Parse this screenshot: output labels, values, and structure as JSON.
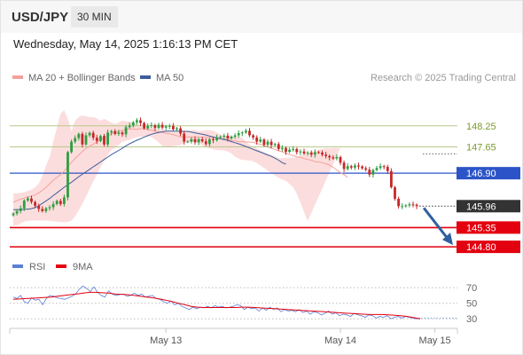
{
  "header": {
    "pair": "USD/JPY",
    "timeframe": "30 MIN",
    "datetime": "Wednesday, May 14, 2025 1:16:13 PM CET"
  },
  "colors": {
    "candle_up": "#2e9e42",
    "candle_down": "#c62828",
    "bollinger_fill": "#fbd5d5",
    "ma20": "#f4a19b",
    "ma50": "#3d5d9c",
    "level_green": "#b7c98a",
    "level_blue": "#2c54c8",
    "level_red": "#e3000f",
    "current": "#333333",
    "arrow": "#2f5f9f",
    "rsi": "#5b7fd6",
    "rsi_ma": "#e3000f"
  },
  "chart_data": [
    {
      "type": "candlestick",
      "legend": [
        {
          "name": "MA 20 + Bollinger Bands",
          "color": "#f4a19b"
        },
        {
          "name": "MA 50",
          "color": "#3d5d9c"
        }
      ],
      "credit": "Research © 2025 Trading Central",
      "x_ticks": [
        {
          "label": "May 13",
          "bar": 42
        },
        {
          "label": "May 14",
          "bar": 90
        },
        {
          "label": "May 15",
          "bar": 116
        }
      ],
      "ylim": [
        144.55,
        148.65
      ],
      "levels": [
        {
          "value": 148.25,
          "label": "148.25",
          "style": "resistance"
        },
        {
          "value": 147.65,
          "label": "147.65",
          "style": "resistance"
        },
        {
          "value": 146.9,
          "label": "146.90",
          "style": "pivot"
        },
        {
          "value": 145.96,
          "label": "145.96",
          "style": "current"
        },
        {
          "value": 145.35,
          "label": "145.35",
          "style": "support"
        },
        {
          "value": 144.8,
          "label": "144.80",
          "style": "support"
        }
      ],
      "forecast": {
        "from": 145.96,
        "to": 144.8
      },
      "close": [
        145.75,
        145.82,
        145.9,
        146.12,
        146.18,
        146.08,
        145.97,
        145.88,
        145.82,
        145.9,
        145.93,
        146.02,
        146.11,
        146.02,
        146.21,
        147.5,
        147.8,
        147.9,
        148.02,
        147.72,
        147.98,
        148.05,
        147.91,
        147.82,
        147.96,
        147.72,
        148.06,
        148.1,
        148.02,
        148.06,
        148.01,
        148.21,
        148.26,
        148.35,
        148.41,
        148.33,
        148.18,
        148.26,
        148.27,
        148.19,
        148.28,
        148.2,
        148.24,
        148.25,
        148.15,
        148.18,
        148.03,
        147.8,
        147.8,
        147.87,
        147.78,
        147.87,
        147.81,
        147.73,
        147.87,
        147.84,
        147.92,
        147.94,
        147.97,
        147.89,
        147.94,
        147.98,
        148.04,
        148.06,
        148.11,
        147.98,
        147.92,
        147.8,
        147.86,
        147.71,
        147.8,
        147.7,
        147.73,
        147.59,
        147.62,
        147.51,
        147.57,
        147.59,
        147.5,
        147.52,
        147.46,
        147.49,
        147.43,
        147.5,
        147.49,
        147.43,
        147.39,
        147.35,
        147.32,
        147.36,
        147.2,
        147.02,
        147.1,
        147.06,
        147.12,
        147.09,
        147.04,
        147.0,
        146.86,
        146.99,
        147.05,
        147.1,
        147.08,
        146.96,
        146.5,
        146.17,
        145.96,
        145.96,
        145.98,
        146.01,
        146.0,
        145.96
      ],
      "ma20": [
        146.07,
        146.12,
        146.16,
        146.19,
        146.22,
        146.24,
        146.28,
        146.34,
        146.41,
        146.49,
        146.6,
        146.7,
        146.78,
        146.86,
        146.96,
        147.09,
        147.21,
        147.32,
        147.42,
        147.52,
        147.61,
        147.67,
        147.73,
        147.79,
        147.84,
        147.91,
        147.96,
        148.03,
        148.07,
        148.09,
        148.12,
        148.14,
        148.16,
        148.16,
        148.15,
        148.17,
        148.16,
        148.15,
        148.12,
        148.1,
        148.08,
        148.06,
        148.04,
        148.02,
        148.0,
        147.97,
        147.94,
        147.93,
        147.93,
        147.93,
        147.93,
        147.93,
        147.93,
        147.92,
        147.92,
        147.92,
        147.9,
        147.88,
        147.87,
        147.85,
        147.83,
        147.82,
        147.8,
        147.8,
        147.79,
        147.79,
        147.78,
        147.75,
        147.72,
        147.69,
        147.65,
        147.61,
        147.58,
        147.54,
        147.51,
        147.47,
        147.43,
        147.4,
        147.37,
        147.35,
        147.32,
        147.29,
        147.27,
        147.23,
        147.22,
        147.2,
        147.17,
        147.13,
        147.07,
        146.99,
        146.92,
        146.86,
        146.78
      ],
      "ma50": [
        145.86,
        145.86,
        145.86,
        145.87,
        145.87,
        145.89,
        145.92,
        145.97,
        146.04,
        146.11,
        146.18,
        146.26,
        146.34,
        146.42,
        146.5,
        146.57,
        146.64,
        146.72,
        146.8,
        146.87,
        146.94,
        147.01,
        147.08,
        147.15,
        147.22,
        147.29,
        147.36,
        147.43,
        147.49,
        147.55,
        147.61,
        147.68,
        147.74,
        147.79,
        147.84,
        147.88,
        147.93,
        147.97,
        148.01,
        148.04,
        148.06,
        148.08,
        148.1,
        148.1,
        148.1,
        148.1,
        148.1,
        148.09,
        148.09,
        148.07,
        148.05,
        148.03,
        148.01,
        147.99,
        147.96,
        147.93,
        147.91,
        147.88,
        147.86,
        147.84,
        147.8,
        147.77,
        147.74,
        147.7,
        147.66,
        147.62,
        147.58,
        147.54,
        147.5,
        147.46,
        147.42,
        147.38,
        147.33,
        147.27,
        147.2,
        147.16
      ],
      "bollinger_upper": [
        146.32,
        146.33,
        146.34,
        146.36,
        146.4,
        146.43,
        146.5,
        146.61,
        146.82,
        147.11,
        147.37,
        147.8,
        148.2,
        148.6,
        148.7,
        148.45,
        148.1,
        148.4,
        148.5,
        148.55,
        148.52,
        148.5,
        148.5,
        148.46,
        148.4,
        148.45,
        148.4,
        148.34,
        148.3,
        148.35,
        148.4,
        148.38,
        148.37,
        148.34,
        148.3,
        148.25,
        148.23,
        148.22,
        148.21,
        148.18,
        148.15,
        148.14,
        148.13,
        148.12,
        148.11,
        148.11,
        148.11,
        148.11,
        148.11,
        148.13,
        148.13,
        148.1,
        148.11,
        148.12,
        148.12,
        148.11,
        148.06,
        148.0,
        147.97,
        147.96,
        147.95,
        147.95,
        147.95,
        147.91,
        147.81,
        147.71,
        147.66,
        147.61,
        147.55,
        147.5,
        147.45,
        147.42,
        147.38,
        147.33,
        147.33,
        147.34,
        147.34,
        147.34,
        147.36,
        147.4,
        147.44,
        147.46,
        147.5,
        147.54,
        147.57,
        147.6,
        147.62,
        147.61,
        147.62,
        147.62,
        147.62
      ],
      "bollinger_lower": [
        145.4,
        145.41,
        145.47,
        145.52,
        145.54,
        145.55,
        145.55,
        145.55,
        145.55,
        145.55,
        145.54,
        145.53,
        145.52,
        145.51,
        145.5,
        145.51,
        145.55,
        145.67,
        145.84,
        146.02,
        146.23,
        146.45,
        146.67,
        146.86,
        147.06,
        147.25,
        147.42,
        147.56,
        147.63,
        147.71,
        147.79,
        147.83,
        147.85,
        147.89,
        147.92,
        147.94,
        147.95,
        147.96,
        147.93,
        147.86,
        147.78,
        147.67,
        147.66,
        147.65,
        147.67,
        147.68,
        147.7,
        147.76,
        147.79,
        147.81,
        147.79,
        147.76,
        147.69,
        147.64,
        147.61,
        147.58,
        147.56,
        147.56,
        147.55,
        147.52,
        147.46,
        147.37,
        147.31,
        147.28,
        147.27,
        147.26,
        147.24,
        147.19,
        147.12,
        147.05,
        146.97,
        146.91,
        146.83,
        146.77,
        146.72,
        146.68,
        146.59,
        146.5,
        146.31,
        146.06,
        145.79,
        145.53
      ]
    },
    {
      "type": "line",
      "legend": [
        {
          "name": "RSI",
          "color": "#5b7fd6"
        },
        {
          "name": "9MA",
          "color": "#e3000f"
        }
      ],
      "ylim": [
        20,
        85
      ],
      "y_ticks": [
        70,
        50,
        30
      ],
      "rsi": [
        58,
        56,
        60,
        52,
        50,
        57,
        54,
        55,
        48,
        56,
        60,
        59,
        57,
        56,
        55,
        57,
        59,
        62,
        68,
        72,
        69,
        65,
        71,
        64,
        60,
        58,
        66,
        62,
        60,
        61,
        62,
        59,
        60,
        63,
        60,
        62,
        58,
        59,
        60,
        56,
        55,
        52,
        50,
        53,
        48,
        50,
        46,
        44,
        42,
        45,
        43,
        45,
        44,
        46,
        44,
        47,
        45,
        46,
        44,
        45,
        46,
        48,
        47,
        42,
        45,
        43,
        44,
        40,
        44,
        41,
        45,
        42,
        44,
        39,
        42,
        40,
        41,
        39,
        42,
        38,
        40,
        36,
        39,
        38,
        35,
        37,
        40,
        36,
        38,
        34,
        36,
        35,
        33,
        37,
        35,
        34,
        32,
        35,
        34,
        31,
        33,
        32,
        34,
        30,
        32,
        33,
        31,
        33,
        32,
        31,
        30,
        31
      ],
      "rsi_ma": [
        55,
        55.5,
        56,
        56.5,
        57,
        57.5,
        58,
        59,
        60,
        61,
        62,
        63,
        64,
        64,
        63.5,
        63,
        62,
        61.5,
        61,
        60,
        59,
        58,
        57,
        55.5,
        54,
        52,
        50,
        48,
        46,
        45,
        44.5,
        44.5,
        44.5,
        44.5,
        44.5,
        44.5,
        45,
        45,
        44.5,
        44,
        43.5,
        43,
        42.5,
        42,
        41.5,
        41,
        40.5,
        40,
        39.5,
        39,
        38.5,
        38,
        37.5,
        37,
        36.5,
        36,
        35.5,
        35.5,
        35.5,
        35,
        34.5,
        34,
        33,
        31.5,
        30
      ]
    }
  ]
}
